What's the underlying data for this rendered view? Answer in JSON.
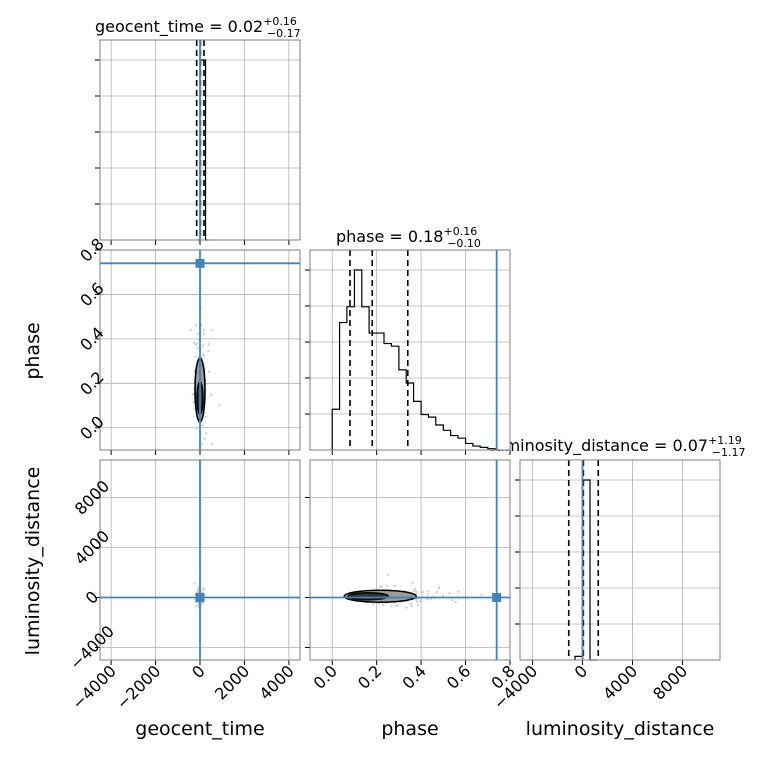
{
  "chart_data": {
    "type": "corner",
    "parameters": [
      "geocent_time",
      "phase",
      "luminosity_distance"
    ],
    "truths": {
      "geocent_time": 0,
      "phase": 0.74,
      "luminosity_distance": 0
    },
    "summaries": [
      {
        "parameter": "geocent_time",
        "prefix": "geocent_time = ",
        "median": "0.02",
        "plus": "+0.16",
        "minus": "−0.17"
      },
      {
        "parameter": "phase",
        "prefix": "phase = ",
        "median": "0.18",
        "plus": "+0.16",
        "minus": "−0.10"
      },
      {
        "parameter": "luminosity_distance",
        "prefix": "luminosity_distance = ",
        "median": "0.07",
        "plus": "+1.19",
        "minus": "−1.17"
      }
    ],
    "axes": {
      "geocent_time": {
        "label": "geocent_time",
        "range": [
          -4500,
          4500
        ],
        "ticks": [
          -4000,
          -2000,
          0,
          2000,
          4000
        ],
        "tick_labels": [
          "−4000",
          "−2000",
          "0",
          "2000",
          "4000"
        ]
      },
      "phase": {
        "label": "phase",
        "range": [
          -0.1,
          0.8
        ],
        "ticks": [
          0.0,
          0.2,
          0.4,
          0.6,
          0.8
        ],
        "tick_labels": [
          "0.0",
          "0.2",
          "0.4",
          "0.6",
          "0.8"
        ]
      },
      "luminosity_distance": {
        "label": "luminosity_distance",
        "range": [
          -5000,
          11000
        ],
        "ticks": [
          -4000,
          0,
          4000,
          8000
        ],
        "tick_labels": [
          "−4000",
          "0",
          "4000",
          "8000"
        ]
      }
    },
    "histograms": {
      "geocent_time": {
        "bin_edges": [
          -125,
          0,
          125,
          250,
          375
        ],
        "counts": [
          0,
          1.0,
          1.0,
          0
        ]
      },
      "phase": {
        "bin_edges": [
          0.0,
          0.033,
          0.066,
          0.1,
          0.133,
          0.166,
          0.2,
          0.233,
          0.266,
          0.3,
          0.333,
          0.366,
          0.4,
          0.433,
          0.466,
          0.5,
          0.533,
          0.566,
          0.6,
          0.633,
          0.666,
          0.7,
          0.733
        ],
        "counts": [
          0.155,
          0.485,
          0.545,
          0.685,
          0.545,
          0.445,
          0.445,
          0.405,
          0.395,
          0.305,
          0.255,
          0.185,
          0.135,
          0.125,
          0.095,
          0.075,
          0.055,
          0.045,
          0.025,
          0.015,
          0.01,
          0.005
        ]
      },
      "luminosity_distance": {
        "bin_edges": [
          -600,
          0,
          600,
          1200
        ],
        "counts": [
          0.02,
          1.0,
          0
        ]
      }
    },
    "quantiles": {
      "geocent_time": [
        -150,
        20,
        180
      ],
      "phase": [
        0.08,
        0.18,
        0.34
      ],
      "luminosity_distance": [
        -1100,
        70,
        1260
      ]
    },
    "scatter_panels": [
      {
        "x": "geocent_time",
        "y": "phase",
        "center": [
          0,
          0.17
        ]
      },
      {
        "x": "geocent_time",
        "y": "luminosity_distance",
        "center": [
          0,
          0
        ]
      },
      {
        "x": "phase",
        "y": "luminosity_distance",
        "center": [
          0.18,
          100
        ]
      }
    ],
    "colors": {
      "truth": "#4682b4",
      "hist": "#000000",
      "grid": "#b0b0b0",
      "scatter": "#cccccc",
      "contour_fill": "#7f7f7f"
    },
    "grid": true
  }
}
